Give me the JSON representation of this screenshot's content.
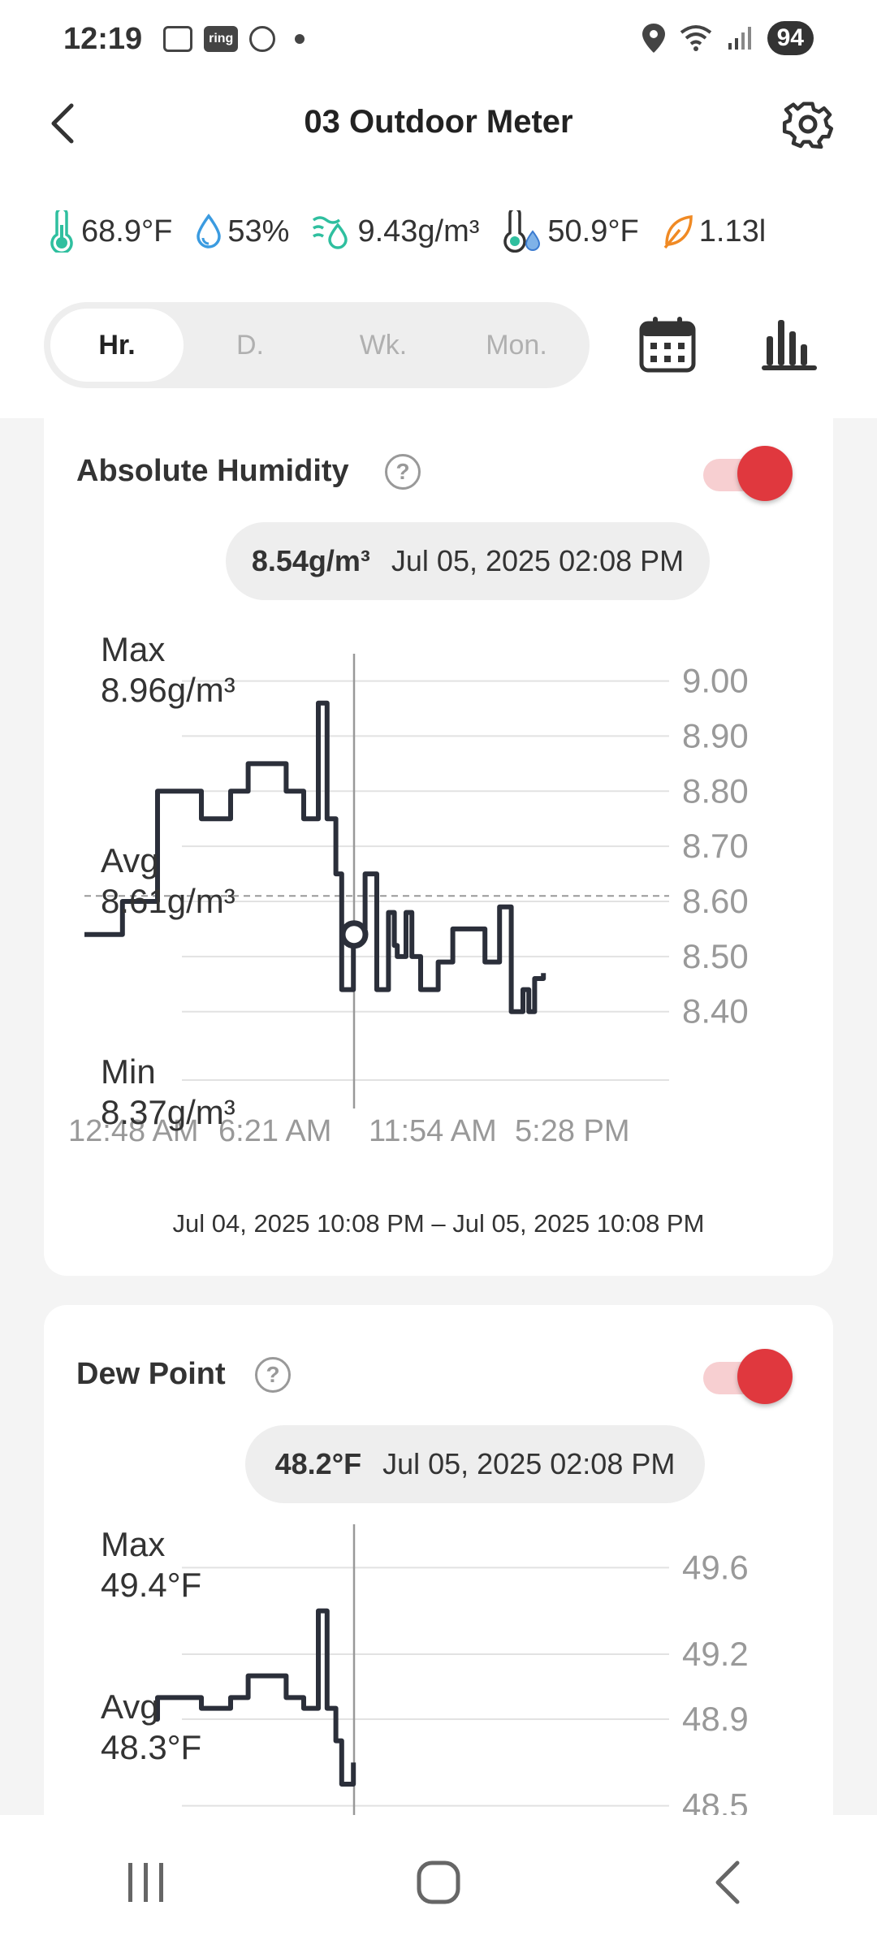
{
  "status_bar": {
    "time": "12:19",
    "battery": "94",
    "ring_label": "ring"
  },
  "header": {
    "title": "03 Outdoor Meter"
  },
  "metrics": [
    {
      "icon": "thermometer-icon",
      "value": "68.9°F",
      "color": "#2fbf9f"
    },
    {
      "icon": "water-drop-icon",
      "value": "53%",
      "color": "#3b9be0"
    },
    {
      "icon": "absolute-humidity-icon",
      "value": "9.43g/m³",
      "color": "#2fbf9f"
    },
    {
      "icon": "dew-point-icon",
      "value": "50.9°F",
      "color": "#2fbf9f"
    },
    {
      "icon": "leaf-icon",
      "value": "1.13l",
      "color": "#f08a24"
    }
  ],
  "tabs": [
    "Hr.",
    "D.",
    "Wk.",
    "Mon."
  ],
  "active_tab": "Hr.",
  "cards": {
    "absolute_humidity": {
      "title": "Absolute Humidity",
      "tooltip_value": "8.54g/m³",
      "tooltip_time": "Jul 05, 2025 02:08 PM",
      "max_label": "Max",
      "max_value": "8.96g/m³",
      "avg_label": "Avg",
      "avg_value": "8.61g/m³",
      "min_label": "Min",
      "min_value": "8.37g/m³",
      "range": "Jul 04, 2025 10:08 PM – Jul 05, 2025 10:08 PM",
      "toggle_on": true
    },
    "dew_point": {
      "title": "Dew Point",
      "tooltip_value": "48.2°F",
      "tooltip_time": "Jul 05, 2025 02:08 PM",
      "max_label": "Max",
      "max_value": "49.4°F",
      "avg_label": "Avg",
      "avg_value": "48.3°F",
      "toggle_on": true
    }
  },
  "chart_data": [
    {
      "type": "line",
      "title": "Absolute Humidity",
      "y_ticks": [
        "9.00",
        "8.90",
        "8.80",
        "8.70",
        "8.60",
        "8.50",
        "8.40"
      ],
      "x_ticks": [
        "12:48 AM",
        "6:21 AM",
        "11:54 AM",
        "5:28 PM"
      ],
      "ylim": [
        8.32,
        9.02
      ],
      "average": 8.61,
      "selected": {
        "x": 0.51,
        "y": 8.54
      },
      "series": [
        {
          "x": [
            0.0,
            0.06,
            0.065,
            0.12,
            0.125,
            0.19,
            0.2,
            0.24,
            0.25,
            0.27,
            0.28,
            0.34,
            0.345,
            0.37,
            0.375,
            0.39,
            0.4,
            0.41,
            0.415,
            0.43,
            0.44,
            0.45,
            0.46,
            0.48,
            0.485,
            0.5,
            0.505,
            0.52,
            0.53,
            0.535,
            0.55,
            0.56,
            0.575,
            0.6,
            0.605,
            0.625,
            0.63,
            0.68,
            0.685,
            0.7,
            0.71,
            0.72,
            0.73,
            0.74,
            0.75,
            0.76,
            0.77,
            0.785
          ],
          "y": [
            8.54,
            8.54,
            8.6,
            8.6,
            8.8,
            8.8,
            8.75,
            8.75,
            8.8,
            8.8,
            8.85,
            8.85,
            8.8,
            8.8,
            8.75,
            8.75,
            8.96,
            8.96,
            8.75,
            8.65,
            8.44,
            8.44,
            8.55,
            8.65,
            8.65,
            8.44,
            8.44,
            8.58,
            8.52,
            8.5,
            8.58,
            8.5,
            8.44,
            8.44,
            8.49,
            8.49,
            8.55,
            8.55,
            8.49,
            8.49,
            8.59,
            8.59,
            8.4,
            8.4,
            8.44,
            8.4,
            8.46,
            8.47
          ]
        }
      ]
    },
    {
      "type": "line",
      "title": "Dew Point",
      "y_ticks": [
        "49.6",
        "49.2",
        "48.9",
        "48.5"
      ],
      "x_ticks": [],
      "ylim": [
        48.3,
        49.65
      ],
      "series": [
        {
          "x": [
            0.12,
            0.125,
            0.19,
            0.2,
            0.24,
            0.25,
            0.27,
            0.28,
            0.34,
            0.345,
            0.37,
            0.375,
            0.39,
            0.4,
            0.41,
            0.415,
            0.43,
            0.44,
            0.45,
            0.46
          ],
          "y": [
            48.9,
            49.0,
            49.0,
            48.95,
            48.95,
            49.0,
            49.0,
            49.1,
            49.1,
            49.0,
            49.0,
            48.95,
            48.95,
            49.4,
            49.4,
            48.95,
            48.8,
            48.6,
            48.6,
            48.7
          ]
        }
      ]
    }
  ]
}
